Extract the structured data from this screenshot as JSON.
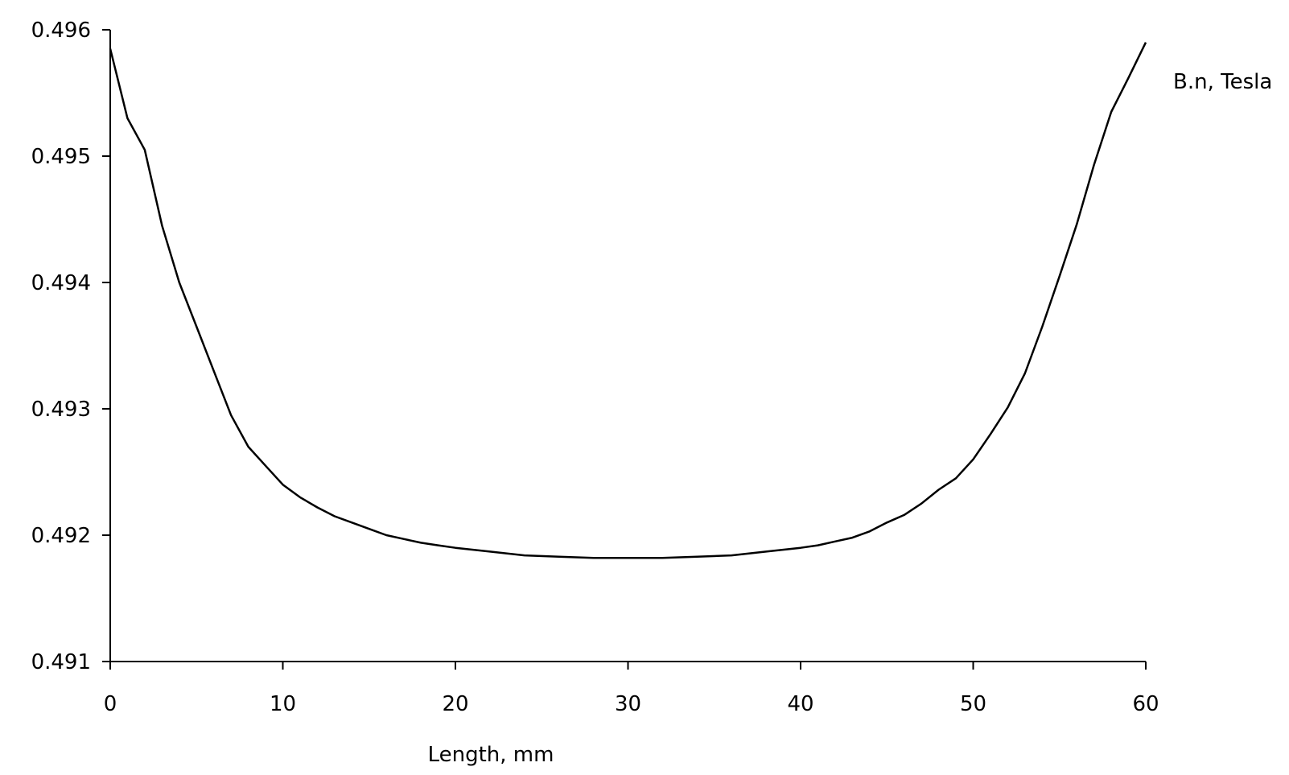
{
  "chart_data": {
    "type": "line",
    "title": "",
    "xlabel": "Length, mm",
    "ylabel": "",
    "xlim": [
      0,
      60
    ],
    "ylim": [
      0.491,
      0.496
    ],
    "x_ticks": [
      0,
      10,
      20,
      30,
      40,
      50,
      60
    ],
    "y_ticks": [
      0.491,
      0.492,
      0.493,
      0.494,
      0.495,
      0.496
    ],
    "x_tick_labels": [
      "0",
      "10",
      "20",
      "30",
      "40",
      "50",
      "60"
    ],
    "y_tick_labels": [
      "0.491",
      "0.492",
      "0.493",
      "0.494",
      "0.495",
      "0.496"
    ],
    "grid": false,
    "legend_placement": "top-right",
    "line_color": "#000000",
    "series": [
      {
        "name": "B.n, Tesla",
        "x": [
          0,
          1,
          2,
          3,
          4,
          5,
          6,
          7,
          8,
          9,
          10,
          11,
          12,
          13,
          14,
          15,
          16,
          17,
          18,
          19,
          20,
          22,
          24,
          26,
          28,
          30,
          32,
          34,
          36,
          38,
          40,
          41,
          42,
          43,
          44,
          45,
          46,
          47,
          48,
          49,
          50,
          51,
          52,
          53,
          54,
          55,
          56,
          57,
          58,
          59,
          60
        ],
        "values": [
          0.49585,
          0.4953,
          0.49505,
          0.49445,
          0.494,
          0.49365,
          0.4933,
          0.49295,
          0.4927,
          0.49255,
          0.4924,
          0.4923,
          0.49222,
          0.49215,
          0.4921,
          0.49205,
          0.492,
          0.49197,
          0.49194,
          0.49192,
          0.4919,
          0.49187,
          0.49184,
          0.49183,
          0.49182,
          0.49182,
          0.49182,
          0.49183,
          0.49184,
          0.49187,
          0.4919,
          0.49192,
          0.49195,
          0.49198,
          0.49203,
          0.4921,
          0.49216,
          0.49225,
          0.49236,
          0.49245,
          0.4926,
          0.4928,
          0.49301,
          0.49328,
          0.49365,
          0.49405,
          0.49446,
          0.49493,
          0.49535,
          0.49562,
          0.4959
        ]
      }
    ]
  }
}
